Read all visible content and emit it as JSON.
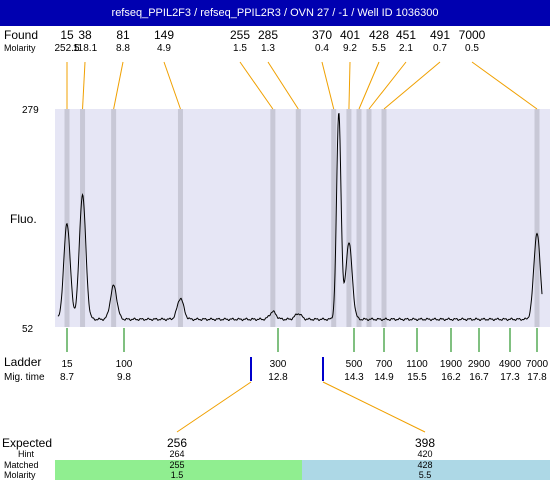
{
  "title": "refseq_PPIL2F3 / refseq_PPIL2R3 / OVN 27 / -1 / Well ID 1036300",
  "labels": {
    "found": "Found",
    "molarity": "Molarity",
    "fluo": "Fluo.",
    "ladder": "Ladder",
    "mig_time": "Mig. time",
    "expected": "Expected",
    "hint": "Hint",
    "matched": "Matched",
    "molarity_bottom": "Molarity"
  },
  "colors": {
    "title_bg": "#0000b0",
    "plot_bg": "#e6e6f5",
    "band": "#c8c8d6",
    "found_line": "#f0a000",
    "ladder_tick": "#008000",
    "marker": "#0000cc",
    "matched_green": "#90ee90",
    "matched_blue": "#add8e6"
  },
  "chart_data": {
    "type": "line",
    "ylim": [
      52,
      279
    ],
    "y_ticks": [
      279,
      52
    ],
    "found": [
      {
        "size": "15",
        "molarity": "252.5"
      },
      {
        "size": "38",
        "molarity": "118.1"
      },
      {
        "size": "81",
        "molarity": "8.8"
      },
      {
        "size": "149",
        "molarity": "4.9"
      },
      {
        "size": "255",
        "molarity": "1.5"
      },
      {
        "size": "285",
        "molarity": "1.3"
      },
      {
        "size": "370",
        "molarity": "0.4"
      },
      {
        "size": "401",
        "molarity": "9.2"
      },
      {
        "size": "428",
        "molarity": "5.5"
      },
      {
        "size": "451",
        "molarity": "2.1"
      },
      {
        "size": "491",
        "molarity": "0.7"
      },
      {
        "size": "7000",
        "molarity": "0.5"
      }
    ],
    "ladder": [
      {
        "size": "15",
        "time": "8.7"
      },
      {
        "size": "100",
        "time": "9.8"
      },
      {
        "size": "300",
        "time": "12.8"
      },
      {
        "size": "500",
        "time": "14.3"
      },
      {
        "size": "700",
        "time": "14.9"
      },
      {
        "size": "1100",
        "time": "15.5"
      },
      {
        "size": "1900",
        "time": "16.2"
      },
      {
        "size": "2900",
        "time": "16.7"
      },
      {
        "size": "4900",
        "time": "17.3"
      },
      {
        "size": "7000",
        "time": "17.8"
      }
    ],
    "expected": [
      {
        "expected": "256",
        "hint": "264",
        "matched": "255",
        "molarity": "1.5"
      },
      {
        "expected": "398",
        "hint": "420",
        "matched": "428",
        "molarity": "5.5"
      }
    ],
    "trace_peaks": [
      {
        "time": 8.7,
        "height": 160
      },
      {
        "time": 9.0,
        "height": 190
      },
      {
        "time": 9.6,
        "height": 95
      },
      {
        "time": 10.9,
        "height": 82
      },
      {
        "time": 12.7,
        "height": 68
      },
      {
        "time": 13.2,
        "height": 66
      },
      {
        "time": 14.0,
        "height": 275
      },
      {
        "time": 14.2,
        "height": 140
      },
      {
        "time": 17.8,
        "height": 150
      }
    ],
    "baseline": 60
  }
}
